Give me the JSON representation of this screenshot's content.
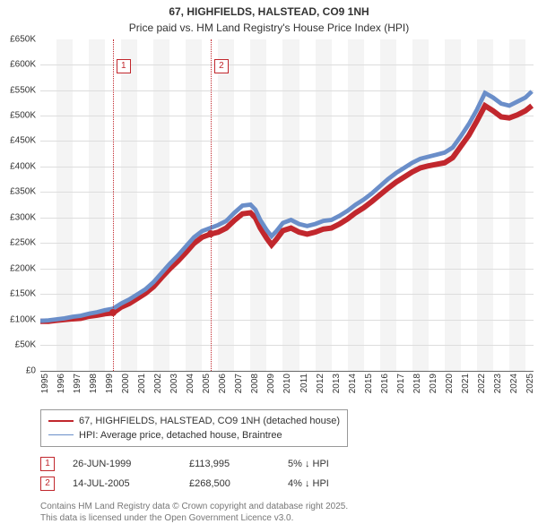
{
  "title": "67, HIGHFIELDS, HALSTEAD, CO9 1NH",
  "subtitle": "Price paid vs. HM Land Registry's House Price Index (HPI)",
  "chart": {
    "type": "line",
    "xlim": [
      1995,
      2025.5
    ],
    "ylim": [
      0,
      650000
    ],
    "ytick_step": 50000,
    "y_format_prefix": "£",
    "y_format_suffix": "K",
    "y_format_divisor": 1000,
    "background_color": "#ffffff",
    "band_color": "#f4f4f4",
    "grid_color": "#dddddd",
    "x_years": [
      1995,
      1996,
      1997,
      1998,
      1999,
      2000,
      2001,
      2002,
      2003,
      2004,
      2005,
      2006,
      2007,
      2008,
      2009,
      2010,
      2011,
      2012,
      2013,
      2014,
      2015,
      2016,
      2017,
      2018,
      2019,
      2020,
      2021,
      2022,
      2023,
      2024,
      2025
    ],
    "axis_fontsize": 10,
    "series": [
      {
        "name": "67, HIGHFIELDS, HALSTEAD, CO9 1NH (detached house)",
        "color": "#c1272d",
        "line_width": 2,
        "points": [
          [
            1995.0,
            97000
          ],
          [
            1995.5,
            97000
          ],
          [
            1996.0,
            99000
          ],
          [
            1996.5,
            100500
          ],
          [
            1997.0,
            102000
          ],
          [
            1997.5,
            103000
          ],
          [
            1998.0,
            107000
          ],
          [
            1998.5,
            109000
          ],
          [
            1999.0,
            112000
          ],
          [
            1999.5,
            113500
          ],
          [
            2000.0,
            125000
          ],
          [
            2000.5,
            132000
          ],
          [
            2001.0,
            142000
          ],
          [
            2001.5,
            152000
          ],
          [
            2002.0,
            165000
          ],
          [
            2002.5,
            183000
          ],
          [
            2003.0,
            200000
          ],
          [
            2003.5,
            215000
          ],
          [
            2004.0,
            232000
          ],
          [
            2004.5,
            250000
          ],
          [
            2005.0,
            262000
          ],
          [
            2005.5,
            268000
          ],
          [
            2006.0,
            272000
          ],
          [
            2006.5,
            280000
          ],
          [
            2007.0,
            295000
          ],
          [
            2007.5,
            308000
          ],
          [
            2008.0,
            310000
          ],
          [
            2008.3,
            300000
          ],
          [
            2008.6,
            280000
          ],
          [
            2009.0,
            260000
          ],
          [
            2009.3,
            247000
          ],
          [
            2009.6,
            258000
          ],
          [
            2010.0,
            275000
          ],
          [
            2010.5,
            280000
          ],
          [
            2011.0,
            272000
          ],
          [
            2011.5,
            268000
          ],
          [
            2012.0,
            272000
          ],
          [
            2012.5,
            278000
          ],
          [
            2013.0,
            280000
          ],
          [
            2013.5,
            288000
          ],
          [
            2014.0,
            298000
          ],
          [
            2014.5,
            310000
          ],
          [
            2015.0,
            320000
          ],
          [
            2015.5,
            332000
          ],
          [
            2016.0,
            345000
          ],
          [
            2016.5,
            358000
          ],
          [
            2017.0,
            370000
          ],
          [
            2017.5,
            380000
          ],
          [
            2018.0,
            390000
          ],
          [
            2018.5,
            398000
          ],
          [
            2019.0,
            402000
          ],
          [
            2019.5,
            405000
          ],
          [
            2020.0,
            408000
          ],
          [
            2020.5,
            418000
          ],
          [
            2021.0,
            440000
          ],
          [
            2021.5,
            462000
          ],
          [
            2022.0,
            490000
          ],
          [
            2022.5,
            520000
          ],
          [
            2023.0,
            510000
          ],
          [
            2023.5,
            498000
          ],
          [
            2024.0,
            496000
          ],
          [
            2024.5,
            502000
          ],
          [
            2025.0,
            510000
          ],
          [
            2025.4,
            520000
          ]
        ]
      },
      {
        "name": "HPI: Average price, detached house, Braintree",
        "color": "#6a8ec9",
        "line_width": 1.6,
        "points": [
          [
            1995.0,
            98000
          ],
          [
            1995.5,
            99000
          ],
          [
            1996.0,
            101000
          ],
          [
            1996.5,
            103000
          ],
          [
            1997.0,
            106000
          ],
          [
            1997.5,
            108000
          ],
          [
            1998.0,
            112000
          ],
          [
            1998.5,
            115000
          ],
          [
            1999.0,
            119000
          ],
          [
            1999.5,
            122000
          ],
          [
            2000.0,
            132000
          ],
          [
            2000.5,
            140000
          ],
          [
            2001.0,
            150000
          ],
          [
            2001.5,
            160000
          ],
          [
            2002.0,
            174000
          ],
          [
            2002.5,
            192000
          ],
          [
            2003.0,
            210000
          ],
          [
            2003.5,
            226000
          ],
          [
            2004.0,
            244000
          ],
          [
            2004.5,
            262000
          ],
          [
            2005.0,
            274000
          ],
          [
            2005.5,
            280000
          ],
          [
            2006.0,
            286000
          ],
          [
            2006.5,
            294000
          ],
          [
            2007.0,
            310000
          ],
          [
            2007.5,
            324000
          ],
          [
            2008.0,
            326000
          ],
          [
            2008.3,
            316000
          ],
          [
            2008.6,
            296000
          ],
          [
            2009.0,
            276000
          ],
          [
            2009.3,
            264000
          ],
          [
            2009.6,
            274000
          ],
          [
            2010.0,
            290000
          ],
          [
            2010.5,
            296000
          ],
          [
            2011.0,
            288000
          ],
          [
            2011.5,
            284000
          ],
          [
            2012.0,
            288000
          ],
          [
            2012.5,
            294000
          ],
          [
            2013.0,
            296000
          ],
          [
            2013.5,
            304000
          ],
          [
            2014.0,
            314000
          ],
          [
            2014.5,
            326000
          ],
          [
            2015.0,
            336000
          ],
          [
            2015.5,
            348000
          ],
          [
            2016.0,
            362000
          ],
          [
            2016.5,
            376000
          ],
          [
            2017.0,
            388000
          ],
          [
            2017.5,
            398000
          ],
          [
            2018.0,
            408000
          ],
          [
            2018.5,
            416000
          ],
          [
            2019.0,
            420000
          ],
          [
            2019.5,
            424000
          ],
          [
            2020.0,
            428000
          ],
          [
            2020.5,
            438000
          ],
          [
            2021.0,
            460000
          ],
          [
            2021.5,
            484000
          ],
          [
            2022.0,
            512000
          ],
          [
            2022.5,
            545000
          ],
          [
            2023.0,
            536000
          ],
          [
            2023.5,
            524000
          ],
          [
            2024.0,
            520000
          ],
          [
            2024.5,
            528000
          ],
          [
            2025.0,
            536000
          ],
          [
            2025.4,
            548000
          ]
        ]
      }
    ],
    "markers": [
      {
        "label": "1",
        "x": 1999.48,
        "y": 113995,
        "box_top_pct": 6
      },
      {
        "label": "2",
        "x": 2005.53,
        "y": 268500,
        "box_top_pct": 6
      }
    ],
    "marker_box_border": "#c1272d",
    "vline_color": "#c1272d"
  },
  "legend": {
    "border_color": "#999999",
    "items": [
      {
        "color": "#c1272d",
        "width": 2,
        "text": "67, HIGHFIELDS, HALSTEAD, CO9 1NH (detached house)"
      },
      {
        "color": "#6a8ec9",
        "width": 1.6,
        "text": "HPI: Average price, detached house, Braintree"
      }
    ]
  },
  "events": [
    {
      "label": "1",
      "date": "26-JUN-1999",
      "price": "£113,995",
      "pct": "5% ↓ HPI"
    },
    {
      "label": "2",
      "date": "14-JUL-2005",
      "price": "£268,500",
      "pct": "4% ↓ HPI"
    }
  ],
  "footnote_line1": "Contains HM Land Registry data © Crown copyright and database right 2025.",
  "footnote_line2": "This data is licensed under the Open Government Licence v3.0."
}
